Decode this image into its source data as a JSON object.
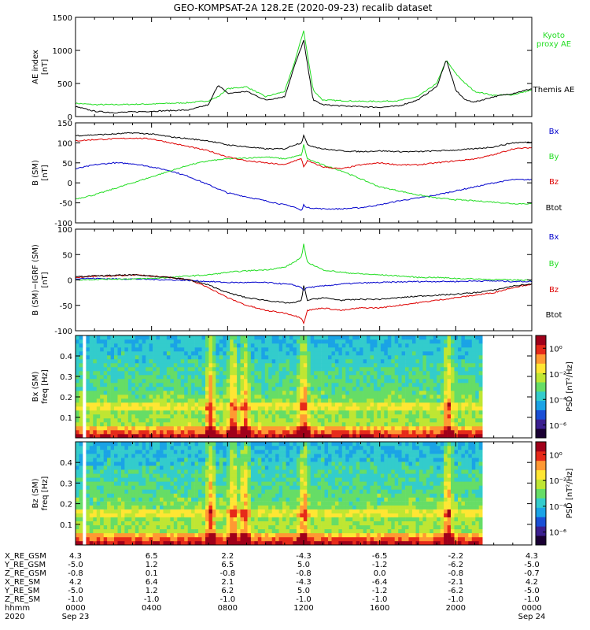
{
  "title": "GEO-KOMPSAT-2A 128.2E (2020-09-23) recalib dataset",
  "colors": {
    "black": "#000000",
    "green": "#22dd22",
    "blue": "#0000cc",
    "red": "#dd0000",
    "colorbar": [
      "#1a0033",
      "#3b1f8f",
      "#1a4fd6",
      "#1aa3e6",
      "#33cccc",
      "#66dd66",
      "#bfe633",
      "#ffe633",
      "#ff9933",
      "#e62a1a",
      "#a0001a"
    ]
  },
  "chart_data": [
    {
      "type": "line",
      "ylabel": "AE index\n[nT]",
      "ylim": [
        0,
        1500
      ],
      "yticks": [
        "0",
        "500",
        "1000",
        "1500"
      ],
      "grid": false,
      "x_hours": [
        0,
        1,
        2,
        3,
        4,
        5,
        6,
        7,
        7.5,
        8,
        9,
        10,
        11,
        11.5,
        12,
        12.5,
        13,
        14,
        15,
        16,
        17,
        18,
        19,
        19.5,
        20,
        20.5,
        21,
        22,
        23,
        24
      ],
      "series": [
        {
          "name": "Kyoto\nproxy AE",
          "color": "green",
          "values": [
            200,
            180,
            180,
            185,
            190,
            200,
            210,
            240,
            300,
            420,
            450,
            300,
            380,
            800,
            1300,
            400,
            250,
            240,
            230,
            230,
            240,
            300,
            500,
            850,
            650,
            500,
            380,
            320,
            330,
            400
          ]
        },
        {
          "name": "Themis AE",
          "color": "black",
          "values": [
            150,
            80,
            60,
            70,
            80,
            90,
            100,
            180,
            480,
            350,
            380,
            250,
            300,
            750,
            1150,
            250,
            180,
            160,
            150,
            140,
            160,
            250,
            450,
            860,
            400,
            250,
            220,
            300,
            350,
            420
          ]
        }
      ]
    },
    {
      "type": "line",
      "ylabel": "B (SM)\n[nT]",
      "ylim": [
        -100,
        150
      ],
      "yticks": [
        "-100",
        "-50",
        "0",
        "50",
        "100",
        "150"
      ],
      "grid": false,
      "x_hours": [
        0,
        1,
        2,
        3,
        4,
        5,
        6,
        7,
        8,
        9,
        10,
        11,
        11.5,
        11.9,
        12,
        12.2,
        13,
        14,
        15,
        16,
        17,
        18,
        19,
        20,
        21,
        22,
        23,
        24
      ],
      "series": [
        {
          "name": "Bx",
          "color": "blue",
          "values": [
            35,
            45,
            50,
            48,
            40,
            30,
            15,
            -5,
            -25,
            -35,
            -45,
            -55,
            -60,
            -70,
            -55,
            -62,
            -65,
            -65,
            -62,
            -55,
            -45,
            -38,
            -30,
            -20,
            -10,
            0,
            8,
            8
          ]
        },
        {
          "name": "By",
          "color": "green",
          "values": [
            -40,
            -30,
            -15,
            0,
            15,
            30,
            45,
            55,
            60,
            62,
            65,
            60,
            65,
            70,
            95,
            60,
            45,
            30,
            10,
            -10,
            -20,
            -30,
            -38,
            -42,
            -45,
            -48,
            -52,
            -52
          ]
        },
        {
          "name": "Bz",
          "color": "red",
          "values": [
            105,
            108,
            110,
            112,
            110,
            100,
            90,
            80,
            65,
            55,
            50,
            45,
            55,
            60,
            40,
            55,
            40,
            35,
            45,
            50,
            45,
            45,
            50,
            55,
            60,
            70,
            85,
            88
          ]
        },
        {
          "name": "Btot",
          "color": "black",
          "values": [
            118,
            120,
            122,
            125,
            122,
            115,
            110,
            105,
            95,
            90,
            85,
            85,
            95,
            100,
            120,
            95,
            85,
            80,
            78,
            80,
            78,
            78,
            80,
            82,
            85,
            90,
            100,
            102
          ]
        }
      ]
    },
    {
      "type": "line",
      "ylabel": "B (SM)−IGRF (SM)\n[nT]",
      "ylim": [
        -100,
        100
      ],
      "yticks": [
        "-100",
        "-50",
        "0",
        "50",
        "100"
      ],
      "grid": false,
      "x_hours": [
        0,
        1,
        2,
        3,
        4,
        5,
        6,
        7,
        8,
        9,
        10,
        11,
        11.5,
        11.9,
        12,
        12.2,
        13,
        14,
        15,
        16,
        17,
        18,
        19,
        20,
        21,
        22,
        23,
        24
      ],
      "series": [
        {
          "name": "Bx",
          "color": "blue",
          "values": [
            3,
            3,
            2,
            2,
            1,
            0,
            -1,
            -3,
            -5,
            -5,
            -5,
            -8,
            -10,
            -15,
            -20,
            -15,
            -12,
            -8,
            -6,
            -5,
            -4,
            -3,
            -3,
            -3,
            -2,
            -2,
            -3,
            -3
          ]
        },
        {
          "name": "By",
          "color": "green",
          "values": [
            0,
            1,
            2,
            2,
            3,
            5,
            8,
            10,
            15,
            18,
            20,
            25,
            35,
            45,
            70,
            35,
            20,
            15,
            12,
            10,
            8,
            5,
            5,
            3,
            2,
            1,
            0,
            0
          ]
        },
        {
          "name": "Bz",
          "color": "red",
          "values": [
            5,
            7,
            8,
            10,
            8,
            5,
            0,
            -15,
            -35,
            -50,
            -60,
            -65,
            -70,
            -75,
            -85,
            -60,
            -55,
            -60,
            -55,
            -55,
            -50,
            -45,
            -40,
            -35,
            -30,
            -25,
            -15,
            -8
          ]
        },
        {
          "name": "Btot",
          "color": "black",
          "values": [
            6,
            8,
            9,
            10,
            8,
            5,
            0,
            -10,
            -25,
            -35,
            -40,
            -45,
            -45,
            -40,
            -10,
            -40,
            -35,
            -40,
            -38,
            -38,
            -35,
            -32,
            -30,
            -28,
            -25,
            -20,
            -12,
            -8
          ]
        }
      ]
    },
    {
      "type": "heatmap",
      "ylabel": "Bx (SM)\nfreq [Hz]",
      "ylim": [
        0,
        0.5
      ],
      "yticks": [
        "0.1",
        "0.2",
        "0.3",
        "0.4"
      ],
      "colorbar_label": "PSD [nT²/Hz]",
      "colorbar_ticks": [
        "10⁰",
        "10⁻²",
        "10⁻⁴",
        "10⁻⁶"
      ],
      "colorbar_log_range": [
        -7,
        1
      ],
      "colorbar_tick_exponents": [
        0,
        -2,
        -4,
        -6
      ],
      "bursts_hours": [
        7.1,
        8.3,
        8.9,
        12,
        19.6
      ],
      "gap_hours": [
        0.3,
        0.6
      ]
    },
    {
      "type": "heatmap",
      "ylabel": "Bz (SM)\nfreq [Hz]",
      "ylim": [
        0,
        0.5
      ],
      "yticks": [
        "0.1",
        "0.2",
        "0.3",
        "0.4"
      ],
      "colorbar_label": "PSD [nT²/Hz]",
      "colorbar_ticks": [
        "10⁰",
        "10⁻²",
        "10⁻⁴",
        "10⁻⁶"
      ],
      "colorbar_log_range": [
        -7,
        1
      ],
      "colorbar_tick_exponents": [
        0,
        -2,
        -4,
        -6
      ],
      "bursts_hours": [
        7.1,
        8.3,
        8.9,
        12,
        19.6
      ],
      "gap_hours": [
        0.3,
        0.6
      ]
    }
  ],
  "xaxis": {
    "tick_hours": [
      0,
      4,
      8,
      12,
      16,
      20,
      24
    ],
    "minor_hours": [
      1,
      2,
      3,
      5,
      6,
      7,
      9,
      10,
      11,
      13,
      14,
      15,
      17,
      18,
      19,
      21,
      22,
      23
    ]
  },
  "ephemeris": {
    "rows": [
      {
        "label": "X_RE_GSM",
        "values": [
          "4.3",
          "6.5",
          "2.2",
          "-4.3",
          "-6.5",
          "-2.2",
          "4.3"
        ]
      },
      {
        "label": "Y_RE_GSM",
        "values": [
          "-5.0",
          "1.2",
          "6.5",
          "5.0",
          "-1.2",
          "-6.2",
          "-5.0"
        ]
      },
      {
        "label": "Z_RE_GSM",
        "values": [
          "-0.8",
          "0.1",
          "-0.8",
          "-0.8",
          "0.0",
          "-0.8",
          "-0.7"
        ]
      },
      {
        "label": "X_RE_SM",
        "values": [
          "4.2",
          "6.4",
          "2.1",
          "-4.3",
          "-6.4",
          "-2.1",
          "4.2"
        ]
      },
      {
        "label": "Y_RE_SM",
        "values": [
          "-5.0",
          "1.2",
          "6.2",
          "5.0",
          "-1.2",
          "-6.2",
          "-5.0"
        ]
      },
      {
        "label": "Z_RE_SM",
        "values": [
          "-1.0",
          "-1.0",
          "-1.0",
          "-1.0",
          "-1.0",
          "-1.0",
          "-1.0"
        ]
      },
      {
        "label": "hhmm",
        "values": [
          "0000",
          "0400",
          "0800",
          "1200",
          "1600",
          "2000",
          "0000"
        ]
      },
      {
        "label": "2020",
        "values": [
          "Sep 23",
          "",
          "",
          "",
          "",
          "",
          "Sep 24"
        ]
      }
    ]
  }
}
